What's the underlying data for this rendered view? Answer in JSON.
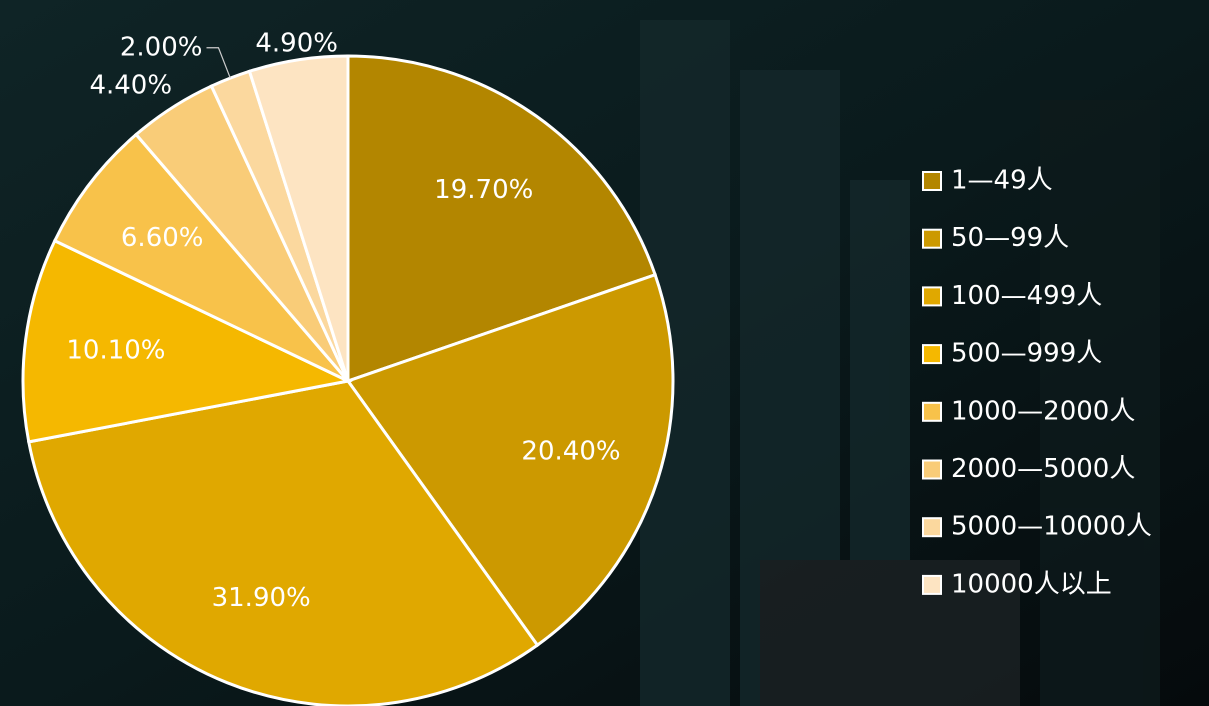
{
  "chart_data": {
    "type": "pie",
    "categories": [
      "1—49人",
      "50—99人",
      "100—499人",
      "500—999人",
      "1000—2000人",
      "2000—5000人",
      "5000—10000人",
      "10000人以上"
    ],
    "values": [
      19.7,
      20.4,
      31.9,
      10.1,
      6.6,
      4.4,
      2.0,
      4.9
    ],
    "value_labels": [
      "19.70%",
      "20.40%",
      "31.90%",
      "10.10%",
      "6.60%",
      "4.40%",
      "2.00%",
      "4.90%"
    ],
    "colors": [
      "#b38600",
      "#cc9900",
      "#e0a800",
      "#f5b800",
      "#f8c24a",
      "#f9cc78",
      "#fbd89e",
      "#fde4c2"
    ],
    "legend": "right"
  }
}
